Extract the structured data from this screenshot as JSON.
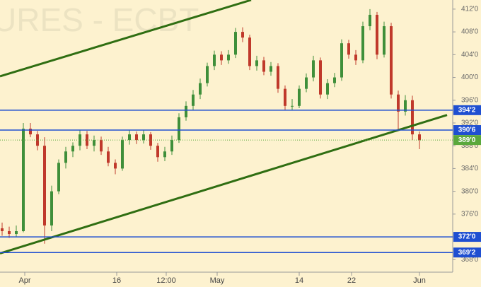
{
  "chart_data": {
    "type": "candlestick",
    "watermark": "URES - ECBT",
    "open": [
      373.5,
      373,
      372.5,
      373,
      391,
      390,
      388,
      374,
      380,
      385,
      387,
      388,
      390,
      388,
      389,
      387,
      385,
      384,
      389,
      390,
      389,
      390,
      388,
      386,
      387,
      389,
      393,
      395,
      397,
      399,
      402,
      404,
      403,
      404,
      408,
      407,
      402,
      403,
      401,
      402,
      398,
      395,
      395,
      398,
      400,
      403,
      397,
      399,
      400,
      406,
      404,
      403,
      409,
      411,
      404,
      409,
      397,
      394,
      396,
      390
    ],
    "high": [
      374.5,
      373.8,
      374,
      392,
      392,
      390.6,
      389.5,
      381,
      385.6,
      387.8,
      388.6,
      390.8,
      390.6,
      389.8,
      389.6,
      387.8,
      385.6,
      389.6,
      390.8,
      390.5,
      390.8,
      390.4,
      388.5,
      387.8,
      389.8,
      393.7,
      395.8,
      397.8,
      399.8,
      402.6,
      404.7,
      404.6,
      404.8,
      408.7,
      408.8,
      407.5,
      403.8,
      403.6,
      402.7,
      402.5,
      398.6,
      396.2,
      398.6,
      400.7,
      403.8,
      403.5,
      399.7,
      400.8,
      406.7,
      406.6,
      404.8,
      409.8,
      412,
      411.5,
      409.8,
      409.6,
      397.7,
      396.9,
      396.8,
      390.5
    ],
    "low": [
      372.2,
      371.8,
      372,
      372.8,
      389.5,
      387.2,
      370.8,
      373,
      379.5,
      384,
      386,
      387.2,
      387.4,
      387,
      386.4,
      384.4,
      383,
      383.6,
      388.2,
      388.3,
      388.4,
      387.3,
      385.2,
      385.3,
      386.4,
      388.5,
      392.4,
      394.3,
      396.2,
      398.4,
      401.3,
      402.2,
      402.4,
      403.4,
      406.2,
      401.3,
      401.2,
      400.4,
      400.3,
      397.3,
      394.2,
      394.3,
      394.6,
      397.4,
      399.3,
      396.3,
      396.2,
      398.3,
      399.4,
      403.3,
      402.2,
      402.5,
      408.3,
      403.2,
      403.5,
      396.3,
      390.8,
      393.3,
      389,
      387.4
    ],
    "close": [
      373,
      372.5,
      373,
      391,
      390,
      388,
      374,
      380,
      385,
      387,
      388,
      390,
      388,
      389,
      387,
      385,
      384,
      389,
      390,
      389,
      390,
      388,
      386,
      387,
      389,
      393,
      395,
      397,
      399,
      402,
      404,
      403,
      404,
      408,
      407,
      402,
      403,
      401,
      402,
      398,
      395,
      395,
      398,
      400,
      403,
      397,
      399,
      400,
      406,
      404,
      403,
      409,
      411,
      404,
      409,
      397,
      394,
      396,
      390,
      389
    ],
    "up_color": "#3f8f3a",
    "down_color": "#c0392b",
    "xlim": [
      -0.3,
      63.7
    ],
    "xticks": [
      {
        "value": 3.2,
        "label": "Apr"
      },
      {
        "value": 16.2,
        "label": "16"
      },
      {
        "value": 23.2,
        "label": "12:00"
      },
      {
        "value": 30.4,
        "label": "May"
      },
      {
        "value": 42,
        "label": "14"
      },
      {
        "value": 49.4,
        "label": "22"
      },
      {
        "value": 59,
        "label": "Jun"
      }
    ],
    "ylim": [
      365.8,
      413.6
    ],
    "yticks": [
      {
        "value": 368,
        "label": "368'0"
      },
      {
        "value": 372,
        "label": "372'0"
      },
      {
        "value": 376,
        "label": "376'0"
      },
      {
        "value": 380,
        "label": "380'0"
      },
      {
        "value": 384,
        "label": "384'0"
      },
      {
        "value": 388,
        "label": "388'0"
      },
      {
        "value": 392,
        "label": "392'0"
      },
      {
        "value": 396,
        "label": "396'0"
      },
      {
        "value": 400,
        "label": "400'0"
      },
      {
        "value": 404,
        "label": "404'0"
      },
      {
        "value": 408,
        "label": "408'0"
      },
      {
        "value": 412,
        "label": "412'0"
      }
    ],
    "levels": [
      {
        "value": 394.25,
        "label": "394'2",
        "color": "#1f4fd1"
      },
      {
        "value": 390.75,
        "label": "390'6",
        "color": "#1f4fd1"
      },
      {
        "value": 372,
        "label": "372'0",
        "color": "#1f4fd1"
      },
      {
        "value": 369.25,
        "label": "369'2",
        "color": "#1f4fd1"
      }
    ],
    "last_price": {
      "value": 389,
      "label": "389'0",
      "color": "#5aa83c"
    },
    "trendlines": [
      {
        "color": "#2f6e12",
        "x": [
          -0.3,
          62.9
        ],
        "y": [
          369.1,
          393.4
        ]
      },
      {
        "color": "#2f6e12",
        "x": [
          -0.3,
          35.2
        ],
        "y": [
          400.2,
          413.6
        ]
      }
    ]
  }
}
